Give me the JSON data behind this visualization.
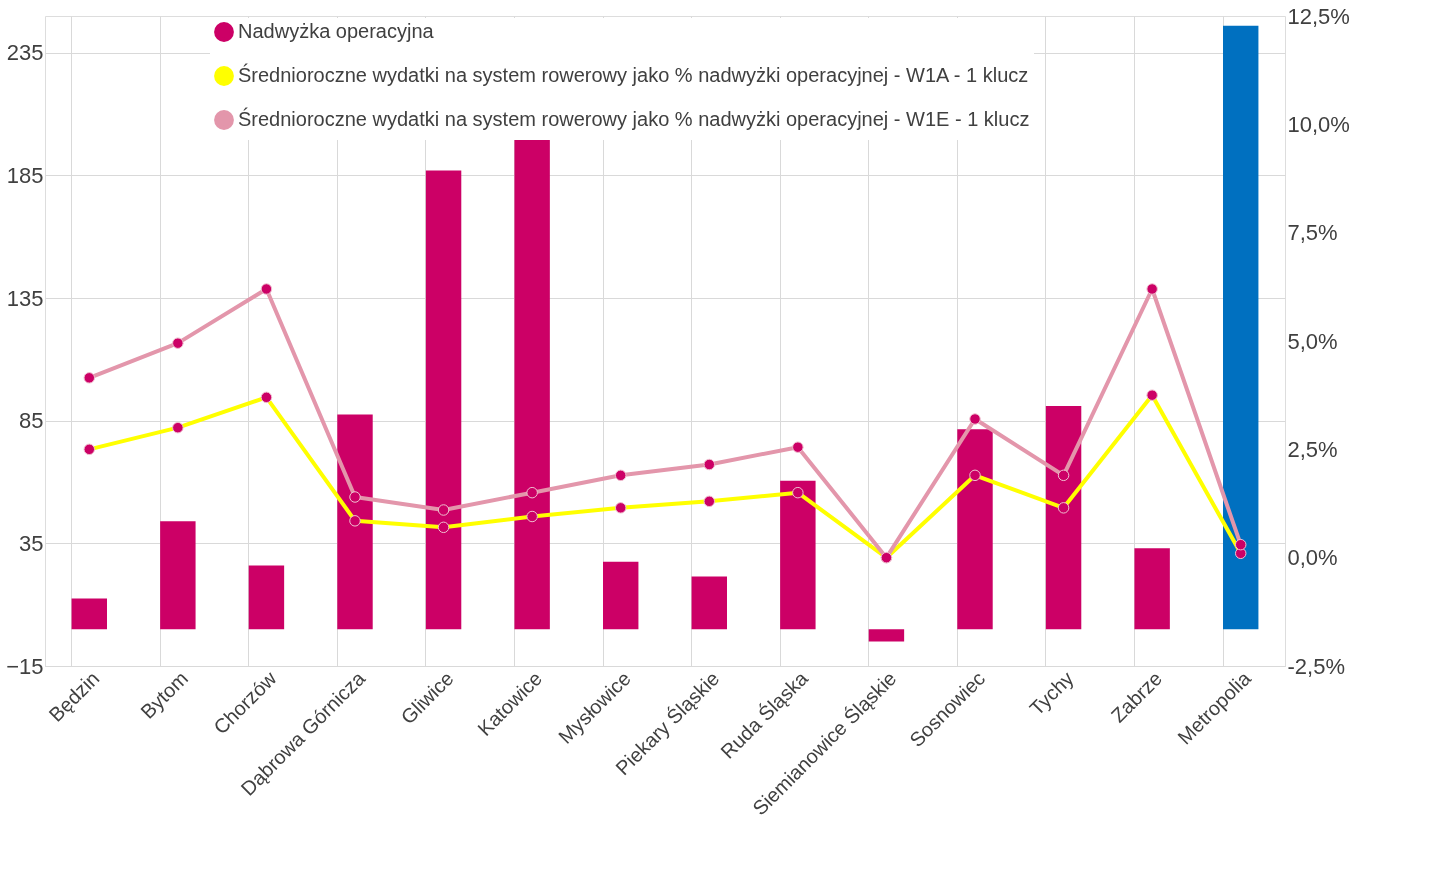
{
  "chart_data": {
    "type": "bar",
    "categories": [
      "Będzin",
      "Bytom",
      "Chorzów",
      "Dąbrowa Górnicza",
      "Gliwice",
      "Katowice",
      "Mysłowice",
      "Piekary Śląskie",
      "Ruda Śląska",
      "Siemianowice Śląskie",
      "Sosnowiec",
      "Tychy",
      "Zabrze",
      "Metropolia"
    ],
    "series": [
      {
        "name": "Nadwyżka operacyjna",
        "color": "#cc0066",
        "colors": [
          "#cc0066",
          "#cc0066",
          "#cc0066",
          "#cc0066",
          "#cc0066",
          "#cc0066",
          "#cc0066",
          "#cc0066",
          "#cc0066",
          "#cc0066",
          "#cc0066",
          "#cc0066",
          "#cc0066",
          "#0070c0"
        ],
        "values": [
          12.5,
          44,
          26,
          87.5,
          187,
          200,
          27.5,
          21.5,
          60.5,
          -5,
          81.5,
          91,
          33,
          246
        ]
      },
      {
        "name": "Średnioroczne wydatki na system rowerowy jako % nadwyżki operacyjnej - W1A - 1 klucz",
        "type": "line",
        "axis": "y2",
        "color": "#ffff00",
        "values": [
          2.5,
          3.0,
          3.7,
          0.85,
          0.7,
          0.95,
          1.15,
          1.3,
          1.5,
          0.0,
          1.9,
          1.15,
          3.75,
          0.1
        ]
      },
      {
        "name": "Średnioroczne wydatki na system rowerowy jako % nadwyżki operacyjnej - W1E - 1 klucz",
        "type": "line",
        "axis": "y2",
        "color": "#e396ab",
        "values": [
          4.15,
          4.95,
          6.2,
          1.4,
          1.1,
          1.5,
          1.9,
          2.15,
          2.55,
          0.0,
          3.2,
          1.9,
          6.2,
          0.3
        ]
      }
    ],
    "ylim": [
      -15,
      250
    ],
    "yticks": [
      -15,
      35,
      85,
      135,
      185,
      235
    ],
    "y2lim": [
      -2.5,
      12.5
    ],
    "y2ticks": [
      {
        "value": -2.5,
        "label": "-2,5%"
      },
      {
        "value": 0,
        "label": "0,0%"
      },
      {
        "value": 2.5,
        "label": "2,5%"
      },
      {
        "value": 5,
        "label": "5,0%"
      },
      {
        "value": 7.5,
        "label": "7,5%"
      },
      {
        "value": 10,
        "label": "10,0%"
      },
      {
        "value": 12.5,
        "label": "12,5%"
      }
    ],
    "grid": true,
    "legend": "top",
    "marker": "circle"
  }
}
